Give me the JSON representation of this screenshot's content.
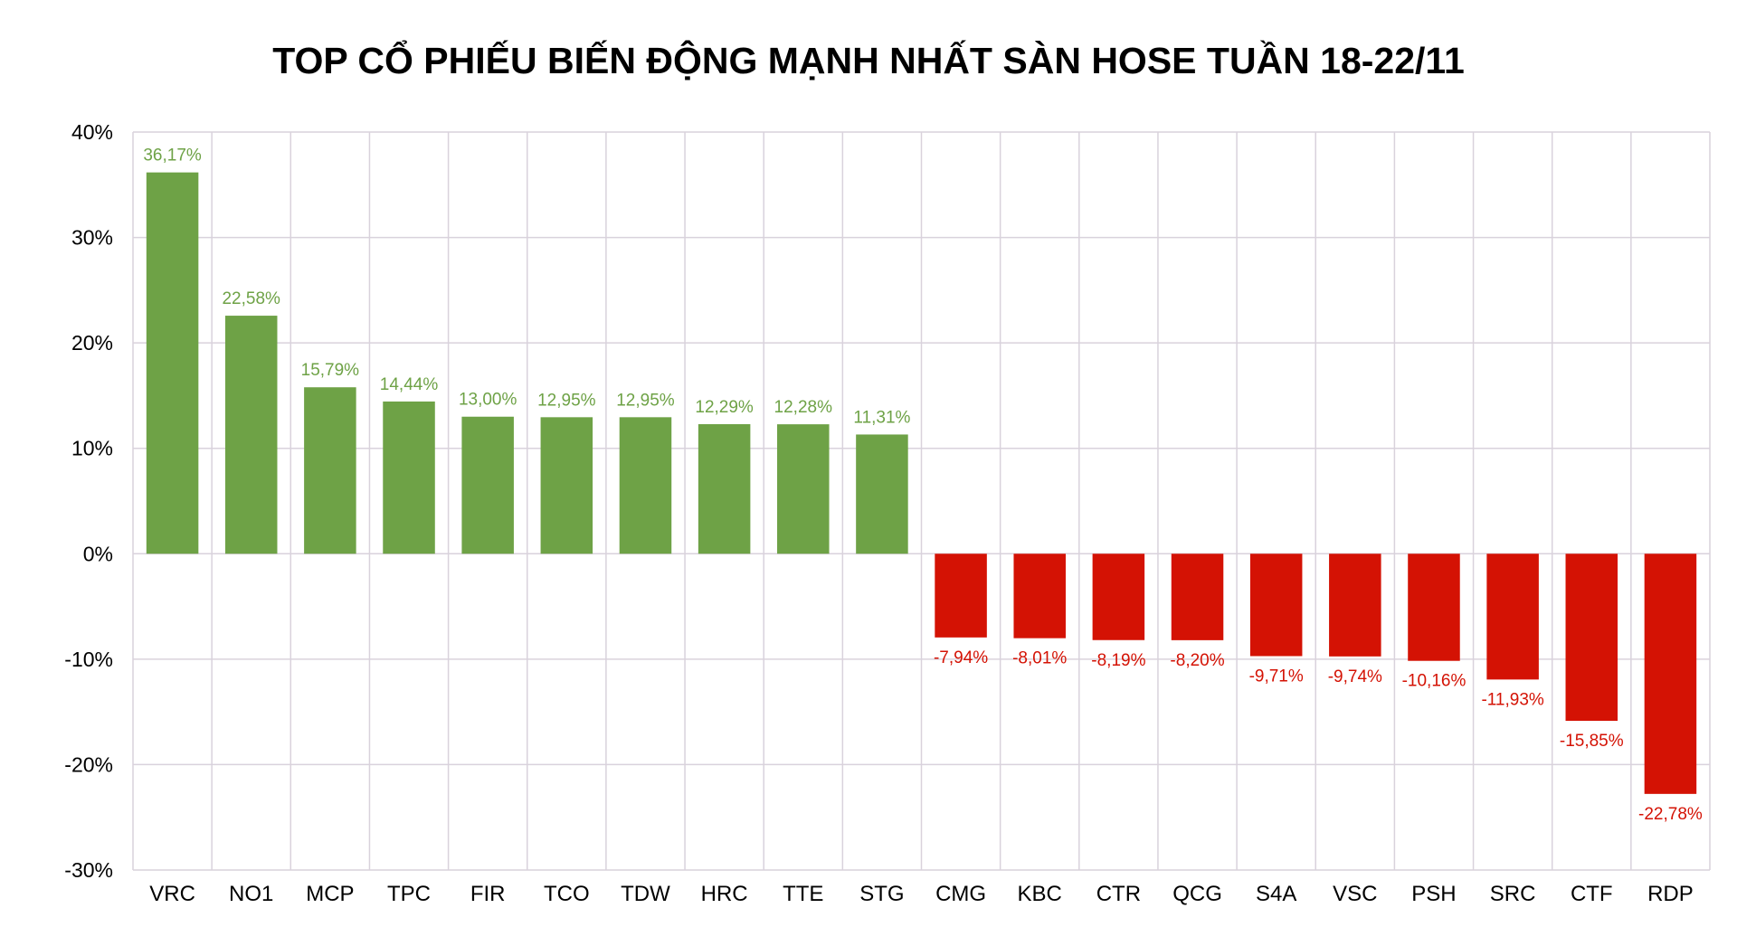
{
  "chart_data": {
    "type": "bar",
    "title": "TOP CỔ PHIẾU BIẾN ĐỘNG MẠNH NHẤT SÀN HOSE TUẦN 18-22/11",
    "xlabel": "",
    "ylabel": "",
    "ylim": [
      -30,
      40
    ],
    "yticks": [
      40,
      30,
      20,
      10,
      0,
      -10,
      -20,
      -30
    ],
    "ytick_labels": [
      "40%",
      "30%",
      "20%",
      "10%",
      "0%",
      "-10%",
      "-20%",
      "-30%"
    ],
    "grid": true,
    "legend": "none",
    "colors": {
      "positive": "#6ea246",
      "negative": "#d41204",
      "positive_label": "#6ea246",
      "negative_label": "#d41204",
      "grid": "#d9d2dc",
      "axis": "#d9d2dc"
    },
    "categories": [
      "VRC",
      "NO1",
      "MCP",
      "TPC",
      "FIR",
      "TCO",
      "TDW",
      "HRC",
      "TTE",
      "STG",
      "CMG",
      "KBC",
      "CTR",
      "QCG",
      "S4A",
      "VSC",
      "PSH",
      "SRC",
      "CTF",
      "RDP"
    ],
    "values": [
      36.17,
      22.58,
      15.79,
      14.44,
      13.0,
      12.95,
      12.95,
      12.29,
      12.28,
      11.31,
      -7.94,
      -8.01,
      -8.19,
      -8.2,
      -9.71,
      -9.74,
      -10.16,
      -11.93,
      -15.85,
      -22.78
    ],
    "data_labels": [
      "36,17%",
      "22,58%",
      "15,79%",
      "14,44%",
      "13,00%",
      "12,95%",
      "12,95%",
      "12,29%",
      "12,28%",
      "11,31%",
      "-7,94%",
      "-8,01%",
      "-8,19%",
      "-8,20%",
      "-9,71%",
      "-9,74%",
      "-10,16%",
      "-11,93%",
      "-15,85%",
      "-22,78%"
    ]
  }
}
